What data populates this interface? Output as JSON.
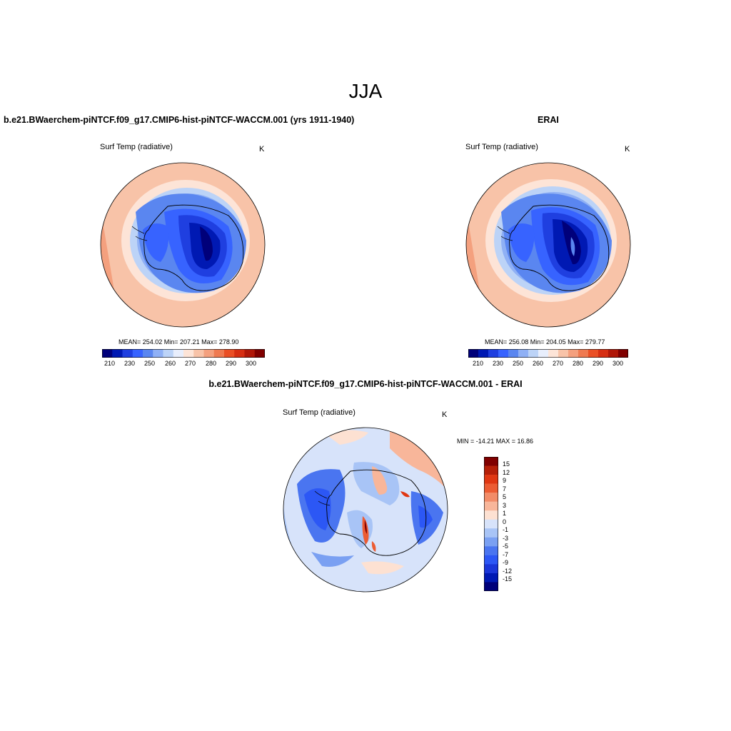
{
  "title": "JJA",
  "colors": {
    "abs_scale": [
      "#00007a",
      "#0019b3",
      "#1f3fe0",
      "#3763ff",
      "#5a86f0",
      "#8fb0f5",
      "#bcd3f7",
      "#e8eefc",
      "#fde4d7",
      "#f8c3a8",
      "#f4a07e",
      "#ef7a51",
      "#ea4f25",
      "#d62e12",
      "#b01708",
      "#800000"
    ],
    "diff_scale": [
      "#00007a",
      "#0019b3",
      "#1a36d9",
      "#2c57f5",
      "#4a75f0",
      "#7aa0f2",
      "#a8c4f6",
      "#d7e3fa",
      "#fde1d2",
      "#f8b69a",
      "#f28c68",
      "#ec5c33",
      "#e03712",
      "#b51f08",
      "#800000"
    ]
  },
  "panels": {
    "left": {
      "case_title": "b.e21.BWaerchem-piNTCF.f09_g17.CMIP6-hist-piNTCF-WACCM.001 (yrs 1911-1940)",
      "var_label": "Surf Temp (radiative)",
      "units": "K",
      "stats": "MEAN= 254.02  Min= 207.21  Max= 278.90",
      "colorbar_ticks": [
        "210",
        "230",
        "250",
        "260",
        "270",
        "280",
        "290",
        "300"
      ]
    },
    "right": {
      "case_title": "ERAI",
      "var_label": "Surf Temp (radiative)",
      "units": "K",
      "stats": "MEAN= 256.08  Min= 204.05  Max= 279.77",
      "colorbar_ticks": [
        "210",
        "230",
        "250",
        "260",
        "270",
        "280",
        "290",
        "300"
      ]
    },
    "diff": {
      "case_title": "b.e21.BWaerchem-piNTCF.f09_g17.CMIP6-hist-piNTCF-WACCM.001 - ERAI",
      "var_label": "Surf Temp (radiative)",
      "units": "K",
      "stats": "MIN = -14.21 MAX =  16.86",
      "colorbar_ticks": [
        "15",
        "12",
        "9",
        "7",
        "5",
        "3",
        "1",
        "0",
        "-1",
        "-3",
        "-5",
        "-7",
        "-9",
        "-12",
        "-15"
      ]
    }
  }
}
